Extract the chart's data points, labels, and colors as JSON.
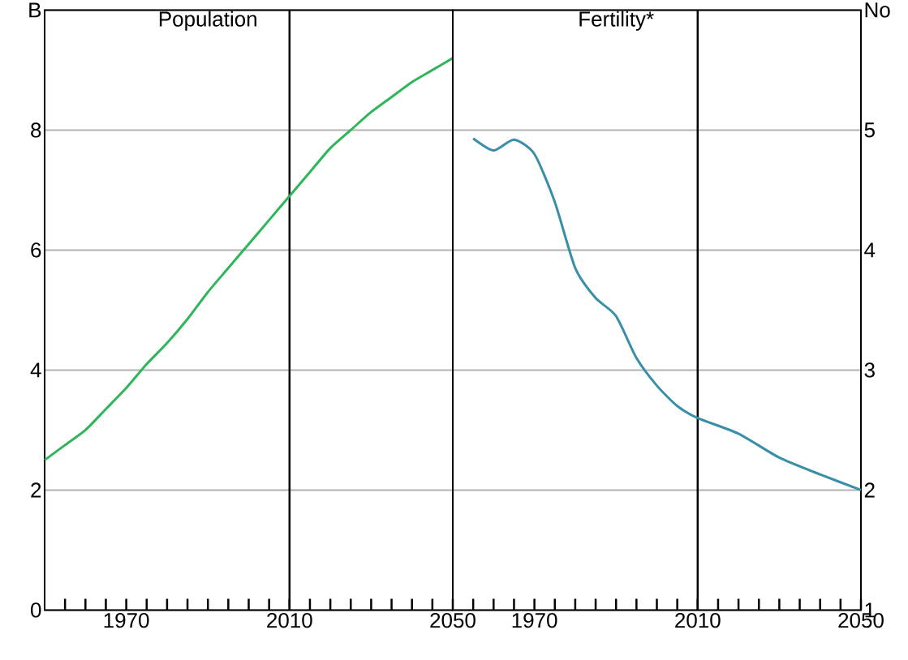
{
  "chart_data": [
    {
      "type": "line",
      "title": "Population",
      "x": [
        1950,
        1955,
        1960,
        1965,
        1970,
        1975,
        1980,
        1985,
        1990,
        1995,
        2000,
        2005,
        2010,
        2015,
        2020,
        2025,
        2030,
        2035,
        2040,
        2045,
        2050
      ],
      "series": [
        {
          "color": "#2fb55a",
          "values": [
            2.5,
            2.75,
            3.0,
            3.35,
            3.7,
            4.1,
            4.45,
            4.85,
            5.3,
            5.7,
            6.1,
            6.5,
            6.9,
            7.3,
            7.7,
            8.0,
            8.3,
            8.55,
            8.8,
            9.0,
            9.2
          ]
        }
      ],
      "xlim": [
        1950,
        2050
      ],
      "xticks": [
        {
          "value": 1955,
          "label": null
        },
        {
          "value": 1960,
          "label": null
        },
        {
          "value": 1965,
          "label": null
        },
        1970,
        {
          "value": 1975,
          "label": null
        },
        {
          "value": 1980,
          "label": null
        },
        {
          "value": 1985,
          "label": null
        },
        {
          "value": 1990,
          "label": null
        },
        {
          "value": 1995,
          "label": null
        },
        {
          "value": 2000,
          "label": null
        },
        {
          "value": 2005,
          "label": null
        },
        2010,
        {
          "value": 2015,
          "label": null
        },
        {
          "value": 2020,
          "label": null
        },
        {
          "value": 2025,
          "label": null
        },
        {
          "value": 2030,
          "label": null
        },
        {
          "value": 2035,
          "label": null
        },
        {
          "value": 2040,
          "label": null
        },
        {
          "value": 2045,
          "label": null
        },
        2050
      ],
      "ylim": [
        0,
        10
      ],
      "yticks": [
        0,
        2,
        4,
        6,
        8,
        {
          "value": 10,
          "label": "B"
        }
      ],
      "grid": "y",
      "marker": "none",
      "line_style": "solid",
      "ref_lines": [
        {
          "axis": "x",
          "value": 2010,
          "color": "#000000"
        }
      ]
    },
    {
      "type": "line",
      "title": "Fertility*",
      "x": [
        1955,
        1960,
        1965,
        1970,
        1975,
        1980,
        1985,
        1990,
        1995,
        2000,
        2005,
        2010,
        2020,
        2030,
        2040,
        2050
      ],
      "series": [
        {
          "color": "#3a8fa8",
          "values": [
            4.93,
            4.83,
            4.92,
            4.8,
            4.4,
            3.85,
            3.6,
            3.45,
            3.1,
            2.87,
            2.7,
            2.6,
            2.47,
            2.27,
            2.13,
            2.0
          ]
        }
      ],
      "xlim": [
        1950,
        2050
      ],
      "xticks": [
        {
          "value": 1955,
          "label": null
        },
        {
          "value": 1960,
          "label": null
        },
        {
          "value": 1965,
          "label": null
        },
        1970,
        {
          "value": 1975,
          "label": null
        },
        {
          "value": 1980,
          "label": null
        },
        {
          "value": 1985,
          "label": null
        },
        {
          "value": 1990,
          "label": null
        },
        {
          "value": 1995,
          "label": null
        },
        {
          "value": 2000,
          "label": null
        },
        {
          "value": 2005,
          "label": null
        },
        2010,
        {
          "value": 2015,
          "label": null
        },
        {
          "value": 2020,
          "label": null
        },
        {
          "value": 2025,
          "label": null
        },
        {
          "value": 2030,
          "label": null
        },
        {
          "value": 2035,
          "label": null
        },
        {
          "value": 2040,
          "label": null
        },
        {
          "value": 2045,
          "label": null
        },
        2050
      ],
      "ylim": [
        1,
        6
      ],
      "yticks": [
        1,
        2,
        3,
        4,
        5,
        {
          "value": 6,
          "label": "No"
        }
      ],
      "grid": "y",
      "marker": "none",
      "line_style": "solid",
      "ref_lines": [
        {
          "axis": "x",
          "value": 2010,
          "color": "#000000"
        }
      ]
    }
  ]
}
